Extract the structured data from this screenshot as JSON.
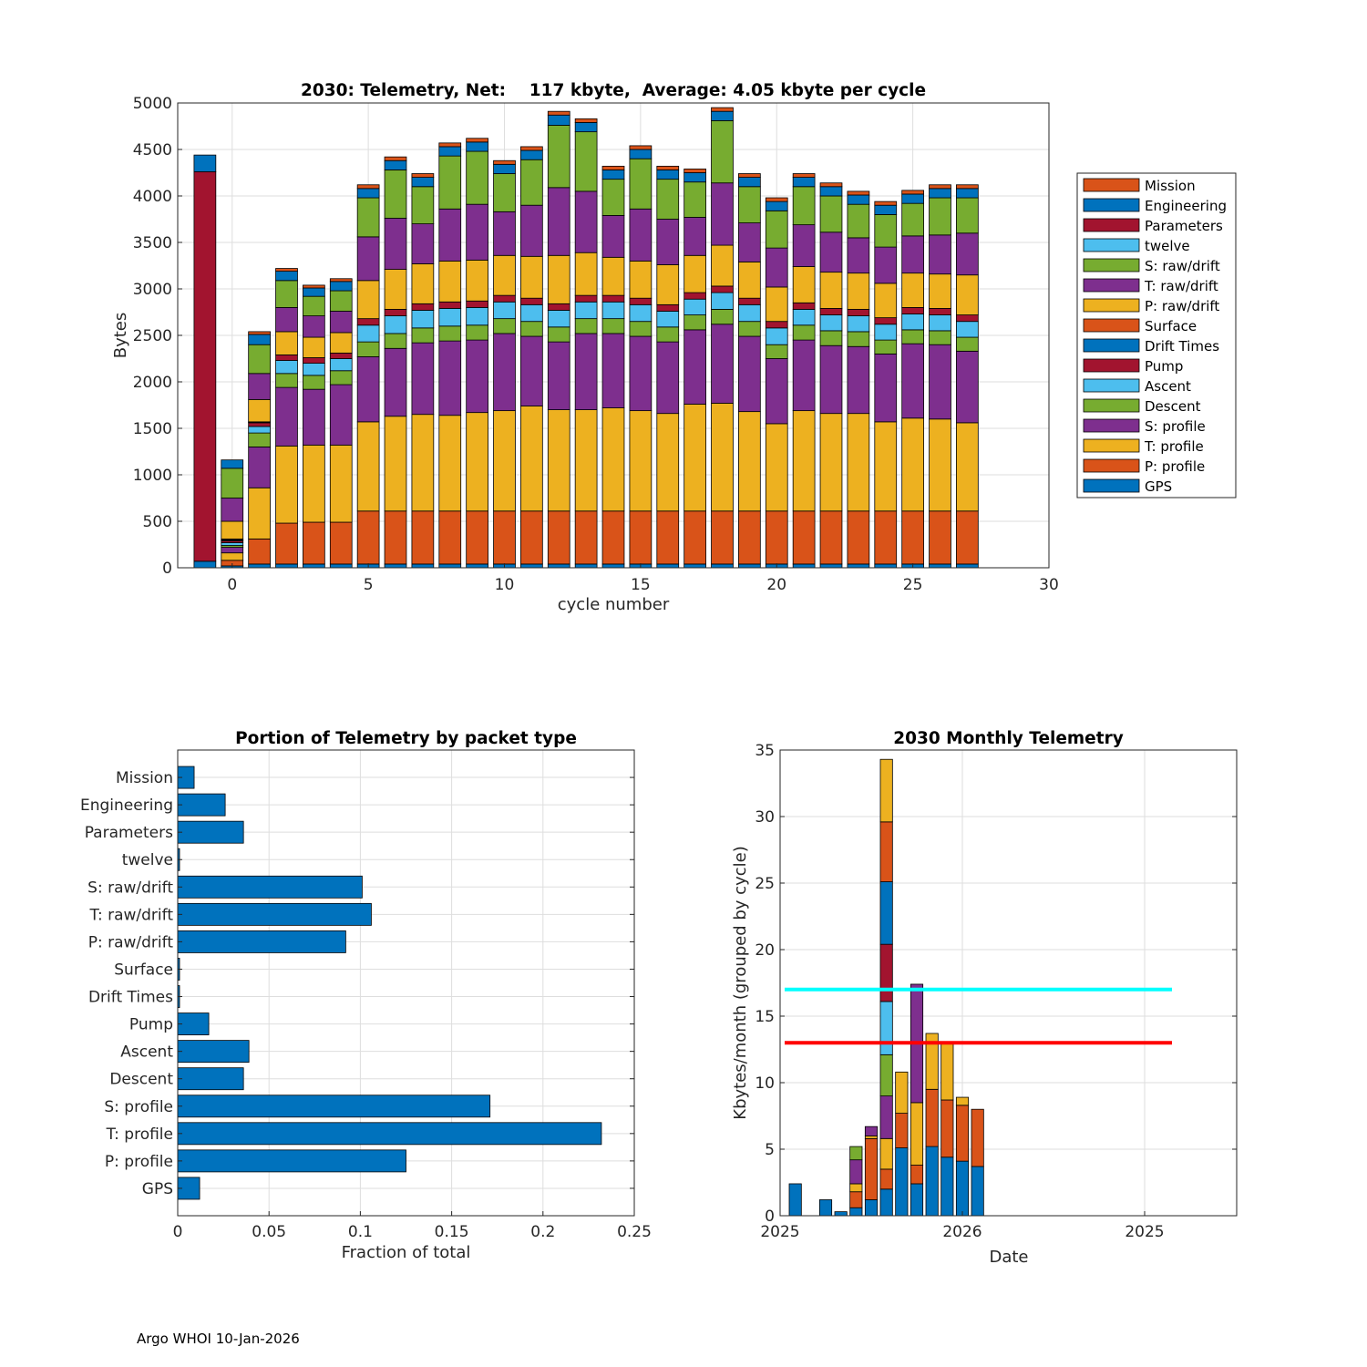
{
  "footer": "Argo WHOI 10-Jan-2026",
  "colors": {
    "blue": "#0072BD",
    "orange": "#D95319",
    "yellow": "#EDB120",
    "purple": "#7E2F8E",
    "green": "#77AC30",
    "cyan": "#4DBEEE",
    "red": "#A2142F",
    "ref_cyan": "#00FFFF",
    "ref_red": "#FF0000"
  },
  "chart_data": [
    {
      "id": "telemetry-by-cycle",
      "type": "bar",
      "stacked": true,
      "title": "2030: Telemetry, Net:    117 kbyte,  Average: 4.05 kbyte per cycle",
      "xlabel": "cycle number",
      "ylabel": "Bytes",
      "xlim": [
        -2,
        30
      ],
      "ylim": [
        0,
        5000
      ],
      "xticks": [
        0,
        5,
        10,
        15,
        20,
        25,
        30
      ],
      "yticks": [
        0,
        500,
        1000,
        1500,
        2000,
        2500,
        3000,
        3500,
        4000,
        4500,
        5000
      ],
      "grid": true,
      "legend_position": "outside-right",
      "series_order": [
        "GPS",
        "P: profile",
        "T: profile",
        "S: profile",
        "Descent",
        "Ascent",
        "Pump",
        "Drift Times",
        "Surface",
        "P: raw/drift",
        "T: raw/drift",
        "S: raw/drift",
        "twelve",
        "Parameters",
        "Engineering",
        "Mission"
      ],
      "series_colors": [
        "blue",
        "orange",
        "yellow",
        "purple",
        "green",
        "cyan",
        "red",
        "blue",
        "orange",
        "yellow",
        "purple",
        "green",
        "cyan",
        "red",
        "blue",
        "orange"
      ],
      "legend": [
        "Mission",
        "Engineering",
        "Parameters",
        "twelve",
        "S: raw/drift",
        "T: raw/drift",
        "P: raw/drift",
        "Surface",
        "Drift Times",
        "Pump",
        "Ascent",
        "Descent",
        "S: profile",
        "T: profile",
        "P: profile",
        "GPS"
      ],
      "cycles": [
        {
          "x": -1,
          "values": {
            "GPS": 70,
            "Parameters": 4190,
            "Engineering": 180
          }
        },
        {
          "x": 0,
          "values": {
            "GPS": 20,
            "P: profile": 60,
            "T: profile": 80,
            "S: profile": 60,
            "Descent": 20,
            "Ascent": 30,
            "Pump": 20,
            "Drift Times": 10,
            "Surface": 10,
            "P: raw/drift": 190,
            "T: raw/drift": 250,
            "S: raw/drift": 320,
            "Engineering": 90
          }
        },
        {
          "x": 1,
          "values": {
            "GPS": 40,
            "P: profile": 270,
            "T: profile": 550,
            "S: profile": 440,
            "Descent": 150,
            "Ascent": 70,
            "Pump": 40,
            "Drift Times": 5,
            "Surface": 5,
            "P: raw/drift": 240,
            "T: raw/drift": 280,
            "S: raw/drift": 310,
            "Engineering": 110,
            "Mission": 30
          }
        },
        {
          "x": 2,
          "values": {
            "GPS": 40,
            "P: profile": 440,
            "T: profile": 830,
            "S: profile": 630,
            "Descent": 150,
            "Ascent": 140,
            "Pump": 60,
            "P: raw/drift": 250,
            "T: raw/drift": 260,
            "S: raw/drift": 290,
            "Engineering": 100,
            "Mission": 30
          }
        },
        {
          "x": 3,
          "values": {
            "GPS": 40,
            "P: profile": 450,
            "T: profile": 830,
            "S: profile": 600,
            "Descent": 150,
            "Ascent": 130,
            "Pump": 60,
            "P: raw/drift": 220,
            "T: raw/drift": 230,
            "S: raw/drift": 210,
            "Engineering": 90,
            "Mission": 30
          }
        },
        {
          "x": 4,
          "values": {
            "GPS": 40,
            "P: profile": 450,
            "T: profile": 830,
            "S: profile": 650,
            "Descent": 150,
            "Ascent": 130,
            "Pump": 60,
            "P: raw/drift": 220,
            "T: raw/drift": 230,
            "S: raw/drift": 220,
            "Engineering": 100,
            "Mission": 30
          }
        },
        {
          "x": 5,
          "values": {
            "GPS": 40,
            "P: profile": 570,
            "T: profile": 960,
            "S: profile": 700,
            "Descent": 160,
            "Ascent": 180,
            "Pump": 70,
            "P: raw/drift": 410,
            "T: raw/drift": 470,
            "S: raw/drift": 420,
            "Engineering": 100,
            "Mission": 40
          }
        },
        {
          "x": 6,
          "values": {
            "GPS": 40,
            "P: profile": 570,
            "T: profile": 1020,
            "S: profile": 730,
            "Descent": 160,
            "Ascent": 190,
            "Pump": 70,
            "P: raw/drift": 430,
            "T: raw/drift": 550,
            "S: raw/drift": 520,
            "Engineering": 100,
            "Mission": 40
          }
        },
        {
          "x": 7,
          "values": {
            "GPS": 40,
            "P: profile": 570,
            "T: profile": 1040,
            "S: profile": 770,
            "Descent": 160,
            "Ascent": 190,
            "Pump": 70,
            "P: raw/drift": 430,
            "T: raw/drift": 430,
            "S: raw/drift": 400,
            "Engineering": 100,
            "Mission": 40
          }
        },
        {
          "x": 8,
          "values": {
            "GPS": 40,
            "P: profile": 570,
            "T: profile": 1030,
            "S: profile": 800,
            "Descent": 160,
            "Ascent": 190,
            "Pump": 70,
            "P: raw/drift": 440,
            "T: raw/drift": 560,
            "S: raw/drift": 570,
            "Engineering": 100,
            "Mission": 40
          }
        },
        {
          "x": 9,
          "values": {
            "GPS": 40,
            "P: profile": 570,
            "T: profile": 1060,
            "S: profile": 780,
            "Descent": 160,
            "Ascent": 190,
            "Pump": 70,
            "P: raw/drift": 440,
            "T: raw/drift": 600,
            "S: raw/drift": 570,
            "Engineering": 100,
            "Mission": 40
          }
        },
        {
          "x": 10,
          "values": {
            "GPS": 40,
            "P: profile": 570,
            "T: profile": 1080,
            "S: profile": 830,
            "Descent": 160,
            "Ascent": 180,
            "Pump": 70,
            "P: raw/drift": 430,
            "T: raw/drift": 470,
            "S: raw/drift": 410,
            "Engineering": 100,
            "Mission": 40
          }
        },
        {
          "x": 11,
          "values": {
            "GPS": 40,
            "P: profile": 570,
            "T: profile": 1130,
            "S: profile": 750,
            "Descent": 160,
            "Ascent": 180,
            "Pump": 70,
            "P: raw/drift": 450,
            "T: raw/drift": 550,
            "S: raw/drift": 490,
            "Engineering": 100,
            "Mission": 40
          }
        },
        {
          "x": 12,
          "values": {
            "GPS": 40,
            "P: profile": 570,
            "T: profile": 1090,
            "S: profile": 730,
            "Descent": 160,
            "Ascent": 180,
            "Pump": 70,
            "P: raw/drift": 520,
            "T: raw/drift": 730,
            "S: raw/drift": 670,
            "Engineering": 110,
            "Mission": 40
          }
        },
        {
          "x": 13,
          "values": {
            "GPS": 40,
            "P: profile": 570,
            "T: profile": 1090,
            "S: profile": 820,
            "Descent": 160,
            "Ascent": 180,
            "Pump": 70,
            "P: raw/drift": 460,
            "T: raw/drift": 660,
            "S: raw/drift": 640,
            "Engineering": 100,
            "Mission": 40
          }
        },
        {
          "x": 14,
          "values": {
            "GPS": 40,
            "P: profile": 570,
            "T: profile": 1110,
            "S: profile": 800,
            "Descent": 160,
            "Ascent": 180,
            "Pump": 70,
            "P: raw/drift": 410,
            "T: raw/drift": 450,
            "S: raw/drift": 390,
            "Engineering": 100,
            "Mission": 40
          }
        },
        {
          "x": 15,
          "values": {
            "GPS": 40,
            "P: profile": 570,
            "T: profile": 1080,
            "S: profile": 800,
            "Descent": 160,
            "Ascent": 180,
            "Pump": 70,
            "P: raw/drift": 400,
            "T: raw/drift": 560,
            "S: raw/drift": 540,
            "Engineering": 100,
            "Mission": 40
          }
        },
        {
          "x": 16,
          "values": {
            "GPS": 40,
            "P: profile": 570,
            "T: profile": 1050,
            "S: profile": 770,
            "Descent": 160,
            "Ascent": 170,
            "Pump": 70,
            "P: raw/drift": 430,
            "T: raw/drift": 490,
            "S: raw/drift": 430,
            "Engineering": 100,
            "Mission": 40
          }
        },
        {
          "x": 17,
          "values": {
            "GPS": 40,
            "P: profile": 570,
            "T: profile": 1150,
            "S: profile": 800,
            "Descent": 160,
            "Ascent": 170,
            "Pump": 70,
            "P: raw/drift": 400,
            "T: raw/drift": 410,
            "S: raw/drift": 380,
            "Engineering": 100,
            "Mission": 40
          }
        },
        {
          "x": 18,
          "values": {
            "GPS": 40,
            "P: profile": 570,
            "T: profile": 1160,
            "S: profile": 850,
            "Descent": 160,
            "Ascent": 180,
            "Pump": 70,
            "P: raw/drift": 440,
            "T: raw/drift": 670,
            "S: raw/drift": 670,
            "Engineering": 100,
            "Mission": 40
          }
        },
        {
          "x": 19,
          "values": {
            "GPS": 40,
            "P: profile": 570,
            "T: profile": 1070,
            "S: profile": 810,
            "Descent": 160,
            "Ascent": 180,
            "Pump": 70,
            "P: raw/drift": 390,
            "T: raw/drift": 420,
            "S: raw/drift": 390,
            "Engineering": 100,
            "Mission": 40
          }
        },
        {
          "x": 20,
          "values": {
            "GPS": 40,
            "P: profile": 570,
            "T: profile": 940,
            "S: profile": 700,
            "Descent": 150,
            "Ascent": 180,
            "Pump": 70,
            "P: raw/drift": 370,
            "T: raw/drift": 420,
            "S: raw/drift": 400,
            "Engineering": 100,
            "Mission": 40
          }
        },
        {
          "x": 21,
          "values": {
            "GPS": 40,
            "P: profile": 570,
            "T: profile": 1080,
            "S: profile": 760,
            "Descent": 160,
            "Ascent": 170,
            "Pump": 70,
            "P: raw/drift": 390,
            "T: raw/drift": 450,
            "S: raw/drift": 410,
            "Engineering": 100,
            "Mission": 40
          }
        },
        {
          "x": 22,
          "values": {
            "GPS": 40,
            "P: profile": 570,
            "T: profile": 1050,
            "S: profile": 730,
            "Descent": 160,
            "Ascent": 170,
            "Pump": 70,
            "P: raw/drift": 390,
            "T: raw/drift": 430,
            "S: raw/drift": 390,
            "Engineering": 100,
            "Mission": 40
          }
        },
        {
          "x": 23,
          "values": {
            "GPS": 40,
            "P: profile": 570,
            "T: profile": 1050,
            "S: profile": 720,
            "Descent": 160,
            "Ascent": 170,
            "Pump": 70,
            "P: raw/drift": 390,
            "T: raw/drift": 380,
            "S: raw/drift": 360,
            "Engineering": 100,
            "Mission": 40
          }
        },
        {
          "x": 24,
          "values": {
            "GPS": 40,
            "P: profile": 570,
            "T: profile": 960,
            "S: profile": 730,
            "Descent": 150,
            "Ascent": 170,
            "Pump": 70,
            "P: raw/drift": 370,
            "T: raw/drift": 390,
            "S: raw/drift": 350,
            "Engineering": 100,
            "Mission": 40
          }
        },
        {
          "x": 25,
          "values": {
            "GPS": 40,
            "P: profile": 570,
            "T: profile": 1000,
            "S: profile": 800,
            "Descent": 150,
            "Ascent": 170,
            "Pump": 70,
            "P: raw/drift": 370,
            "T: raw/drift": 400,
            "S: raw/drift": 350,
            "Engineering": 100,
            "Mission": 40
          }
        },
        {
          "x": 26,
          "values": {
            "GPS": 40,
            "P: profile": 570,
            "T: profile": 990,
            "S: profile": 800,
            "Descent": 150,
            "Ascent": 170,
            "Pump": 70,
            "P: raw/drift": 370,
            "T: raw/drift": 420,
            "S: raw/drift": 400,
            "Engineering": 100,
            "Mission": 40
          }
        },
        {
          "x": 27,
          "values": {
            "GPS": 40,
            "P: profile": 570,
            "T: profile": 950,
            "S: profile": 770,
            "Descent": 150,
            "Ascent": 170,
            "Pump": 70,
            "P: raw/drift": 430,
            "T: raw/drift": 450,
            "S: raw/drift": 380,
            "Engineering": 100,
            "Mission": 40
          }
        }
      ]
    },
    {
      "id": "portion-by-packet",
      "type": "bar",
      "orientation": "horizontal",
      "title": "Portion of Telemetry by packet type",
      "xlabel": "Fraction of total",
      "xlim": [
        0,
        0.25
      ],
      "xticks": [
        0,
        0.05,
        0.1,
        0.15,
        0.2,
        0.25
      ],
      "xtick_labels": [
        "0",
        "0.05",
        "0.1",
        "0.15",
        "0.2",
        "0.25"
      ],
      "grid": true,
      "categories": [
        "GPS",
        "P: profile",
        "T: profile",
        "S: profile",
        "Descent",
        "Ascent",
        "Pump",
        "Drift Times",
        "Surface",
        "P: raw/drift",
        "T: raw/drift",
        "S: raw/drift",
        "twelve",
        "Parameters",
        "Engineering",
        "Mission"
      ],
      "values": [
        0.012,
        0.125,
        0.232,
        0.171,
        0.036,
        0.039,
        0.017,
        0.001,
        0.001,
        0.092,
        0.106,
        0.101,
        0.001,
        0.036,
        0.026,
        0.009
      ]
    },
    {
      "id": "monthly-telemetry",
      "type": "bar",
      "stacked": true,
      "title": "2030 Monthly Telemetry",
      "xlabel": "Date",
      "ylabel": "Kbytes/month (grouped by cycle)",
      "ylim": [
        0,
        35
      ],
      "yticks": [
        0,
        5,
        10,
        15,
        20,
        25,
        30,
        35
      ],
      "xtick_labels": [
        "2025",
        "2026",
        "2025"
      ],
      "grid": true,
      "color_cycle": [
        "blue",
        "orange",
        "yellow",
        "purple",
        "green",
        "cyan",
        "red"
      ],
      "reference_lines": [
        {
          "name": "cyan-reference",
          "y": 17.0,
          "color": "ref_cyan"
        },
        {
          "name": "red-reference",
          "y": 13.0,
          "color": "ref_red"
        }
      ],
      "months": [
        {
          "m": 1,
          "segments": [
            2.4
          ]
        },
        {
          "m": 3,
          "segments": [
            1.2
          ]
        },
        {
          "m": 4,
          "segments": [
            0.3
          ]
        },
        {
          "m": 5,
          "segments": [
            0.6,
            1.2,
            0.6,
            1.8,
            1.0
          ]
        },
        {
          "m": 6,
          "segments": [
            1.2,
            4.6,
            0.2,
            0.7
          ]
        },
        {
          "m": 7,
          "segments": [
            2.0,
            1.5,
            2.3,
            3.2,
            3.1,
            4.0,
            4.3,
            4.7,
            4.5,
            4.7
          ]
        },
        {
          "m": 8,
          "segments": [
            5.1,
            2.6,
            3.1
          ]
        },
        {
          "m": 9,
          "segments": [
            2.4,
            1.4,
            4.7,
            8.9
          ]
        },
        {
          "m": 10,
          "segments": [
            5.2,
            4.3,
            4.2
          ]
        },
        {
          "m": 11,
          "segments": [
            4.4,
            4.3,
            4.3
          ]
        },
        {
          "m": 12,
          "segments": [
            4.1,
            4.2,
            0.6
          ]
        },
        {
          "m": 13,
          "segments": [
            3.7,
            4.3
          ]
        }
      ]
    }
  ]
}
